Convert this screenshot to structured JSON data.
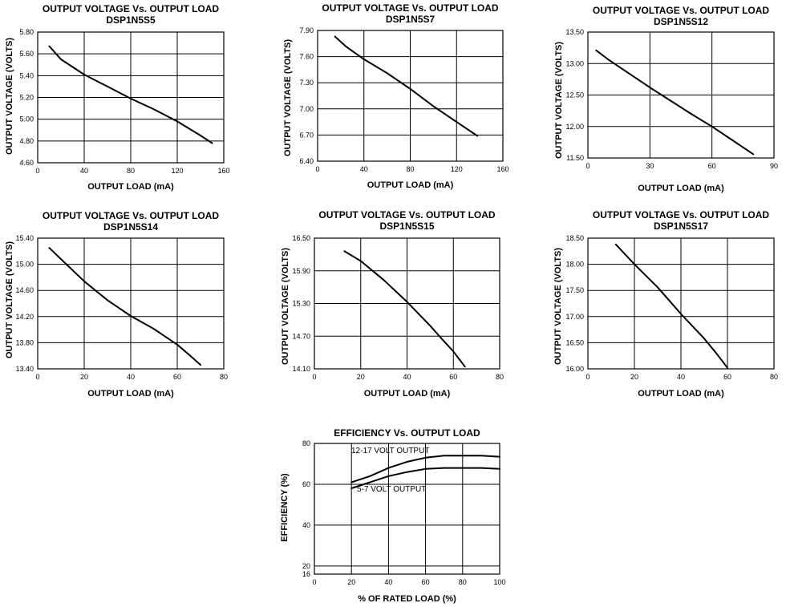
{
  "chart_data": [
    {
      "id": "dsp1n5s5",
      "type": "line",
      "title": "OUTPUT VOLTAGE Vs. OUTPUT LOAD",
      "subtitle": "DSP1N5S5",
      "xlabel": "OUTPUT LOAD (mA)",
      "ylabel": "OUTPUT VOLTAGE (VOLTS)",
      "xlim": [
        0,
        160
      ],
      "ylim": [
        4.6,
        5.8
      ],
      "xticks": [
        "0",
        "40",
        "80",
        "120",
        "160"
      ],
      "yticks": [
        "4.60",
        "4.80",
        "5.00",
        "5.20",
        "5.40",
        "5.60",
        "5.80"
      ],
      "grid": true,
      "series": [
        {
          "name": "DSP1N5S5",
          "x": [
            10,
            20,
            40,
            60,
            80,
            100,
            120,
            140,
            150
          ],
          "y": [
            5.67,
            5.55,
            5.41,
            5.3,
            5.19,
            5.09,
            4.98,
            4.85,
            4.78
          ]
        }
      ]
    },
    {
      "id": "dsp1n5s7",
      "type": "line",
      "title": "OUTPUT VOLTAGE Vs. OUTPUT LOAD",
      "subtitle": "DSP1N5S7",
      "xlabel": "OUTPUT LOAD (mA)",
      "ylabel": "OUTPUT VOLTAGE (VOLTS)",
      "xlim": [
        0,
        160
      ],
      "ylim": [
        6.4,
        7.9
      ],
      "xticks": [
        "0",
        "40",
        "80",
        "120",
        "160"
      ],
      "yticks": [
        "6.40",
        "6.70",
        "7.00",
        "7.30",
        "7.60",
        "7.90"
      ],
      "grid": true,
      "series": [
        {
          "name": "DSP1N5S7",
          "x": [
            15,
            25,
            40,
            60,
            80,
            100,
            120,
            138
          ],
          "y": [
            7.83,
            7.71,
            7.57,
            7.41,
            7.23,
            7.03,
            6.85,
            6.69
          ]
        }
      ]
    },
    {
      "id": "dsp1n5s12",
      "type": "line",
      "title": "OUTPUT VOLTAGE Vs. OUTPUT LOAD",
      "subtitle": "DSP1N5S12",
      "xlabel": "OUTPUT LOAD  (mA)",
      "ylabel": "OUTPUT VOLTAGE (VOLTS)",
      "xlim": [
        0,
        90
      ],
      "ylim": [
        11.5,
        13.5
      ],
      "xticks": [
        "0",
        "30",
        "60",
        "90"
      ],
      "yticks": [
        "11.50",
        "12.00",
        "12.50",
        "13.00",
        "13.50"
      ],
      "grid": true,
      "series": [
        {
          "name": "DSP1N5S12",
          "x": [
            4,
            10,
            20,
            30,
            40,
            50,
            60,
            70,
            80
          ],
          "y": [
            13.21,
            13.06,
            12.84,
            12.62,
            12.41,
            12.2,
            12.0,
            11.78,
            11.56
          ]
        }
      ]
    },
    {
      "id": "dsp1n5s14",
      "type": "line",
      "title": "OUTPUT VOLTAGE Vs. OUTPUT LOAD",
      "subtitle": "DSP1N5S14",
      "xlabel": "OUTPUT LOAD (mA)",
      "ylabel": "OUTPUT VOLTAGE (VOLTS)",
      "xlim": [
        0,
        80
      ],
      "ylim": [
        13.4,
        15.4
      ],
      "xticks": [
        "0",
        "20",
        "40",
        "60",
        "80"
      ],
      "yticks": [
        "13.40",
        "13.80",
        "14.20",
        "14.60",
        "15.00",
        "15.40"
      ],
      "grid": true,
      "series": [
        {
          "name": "DSP1N5S14",
          "x": [
            5,
            10,
            20,
            30,
            40,
            50,
            60,
            65,
            70
          ],
          "y": [
            15.25,
            15.08,
            14.74,
            14.45,
            14.21,
            14.01,
            13.77,
            13.62,
            13.46
          ]
        }
      ]
    },
    {
      "id": "dsp1n5s15",
      "type": "line",
      "title": "OUTPUT VOLTAGE Vs. OUTPUT LOAD",
      "subtitle": "DSP1N5S15",
      "xlabel": "OUTPUT LOAD (mA)",
      "ylabel": "OUTPUT VOLTAGE (VOLTS)",
      "xlim": [
        0,
        80
      ],
      "ylim": [
        14.1,
        16.5
      ],
      "xticks": [
        "0",
        "20",
        "40",
        "60",
        "80"
      ],
      "yticks": [
        "14.10",
        "14.70",
        "15.30",
        "15.90",
        "16.50"
      ],
      "grid": true,
      "series": [
        {
          "name": "DSP1N5S15",
          "x": [
            13,
            20,
            30,
            40,
            50,
            55,
            60,
            65
          ],
          "y": [
            16.26,
            16.08,
            15.73,
            15.33,
            14.89,
            14.65,
            14.42,
            14.14
          ]
        }
      ]
    },
    {
      "id": "dsp1n5s17",
      "type": "line",
      "title": "OUTPUT VOLTAGE Vs. OUTPUT LOAD",
      "subtitle": "DSP1N5S17",
      "xlabel": "OUTPUT LOAD (mA)",
      "ylabel": "OUTPUT VOLTAGE (VOLTS)",
      "xlim": [
        0,
        80
      ],
      "ylim": [
        16.0,
        18.5
      ],
      "xticks": [
        "0",
        "20",
        "40",
        "60",
        "80"
      ],
      "yticks": [
        "16.00",
        "16.50",
        "17.00",
        "17.50",
        "18.00",
        "18.50"
      ],
      "grid": true,
      "series": [
        {
          "name": "DSP1N5S17",
          "x": [
            12,
            20,
            30,
            40,
            50,
            55,
            60
          ],
          "y": [
            18.38,
            18.0,
            17.56,
            17.05,
            16.58,
            16.31,
            16.02
          ]
        }
      ]
    },
    {
      "id": "efficiency",
      "type": "line",
      "title": "EFFICIENCY Vs. OUTPUT LOAD",
      "subtitle": "",
      "xlabel": "% OF RATED LOAD (%)",
      "ylabel": "EFFICIENCY (%)",
      "xlim": [
        0,
        100
      ],
      "ylim": [
        16,
        80
      ],
      "xticks": [
        "0",
        "20",
        "40",
        "60",
        "80",
        "100"
      ],
      "yticks": [
        "16",
        "20",
        "40",
        "60",
        "80"
      ],
      "grid": true,
      "annotations": [
        "12-17 VOLT OUTPUT",
        "5-7 VOLT OUTPUT"
      ],
      "series": [
        {
          "name": "12-17 VOLT OUTPUT",
          "x": [
            20,
            30,
            40,
            50,
            60,
            70,
            80,
            90,
            100
          ],
          "y": [
            61,
            64,
            68,
            71,
            73,
            74,
            74,
            74,
            73.5
          ]
        },
        {
          "name": "5-7 VOLT OUTPUT",
          "x": [
            20,
            30,
            40,
            50,
            60,
            70,
            80,
            90,
            100
          ],
          "y": [
            58,
            61,
            64,
            66,
            67.5,
            68,
            68,
            68,
            67.5
          ]
        }
      ]
    }
  ]
}
